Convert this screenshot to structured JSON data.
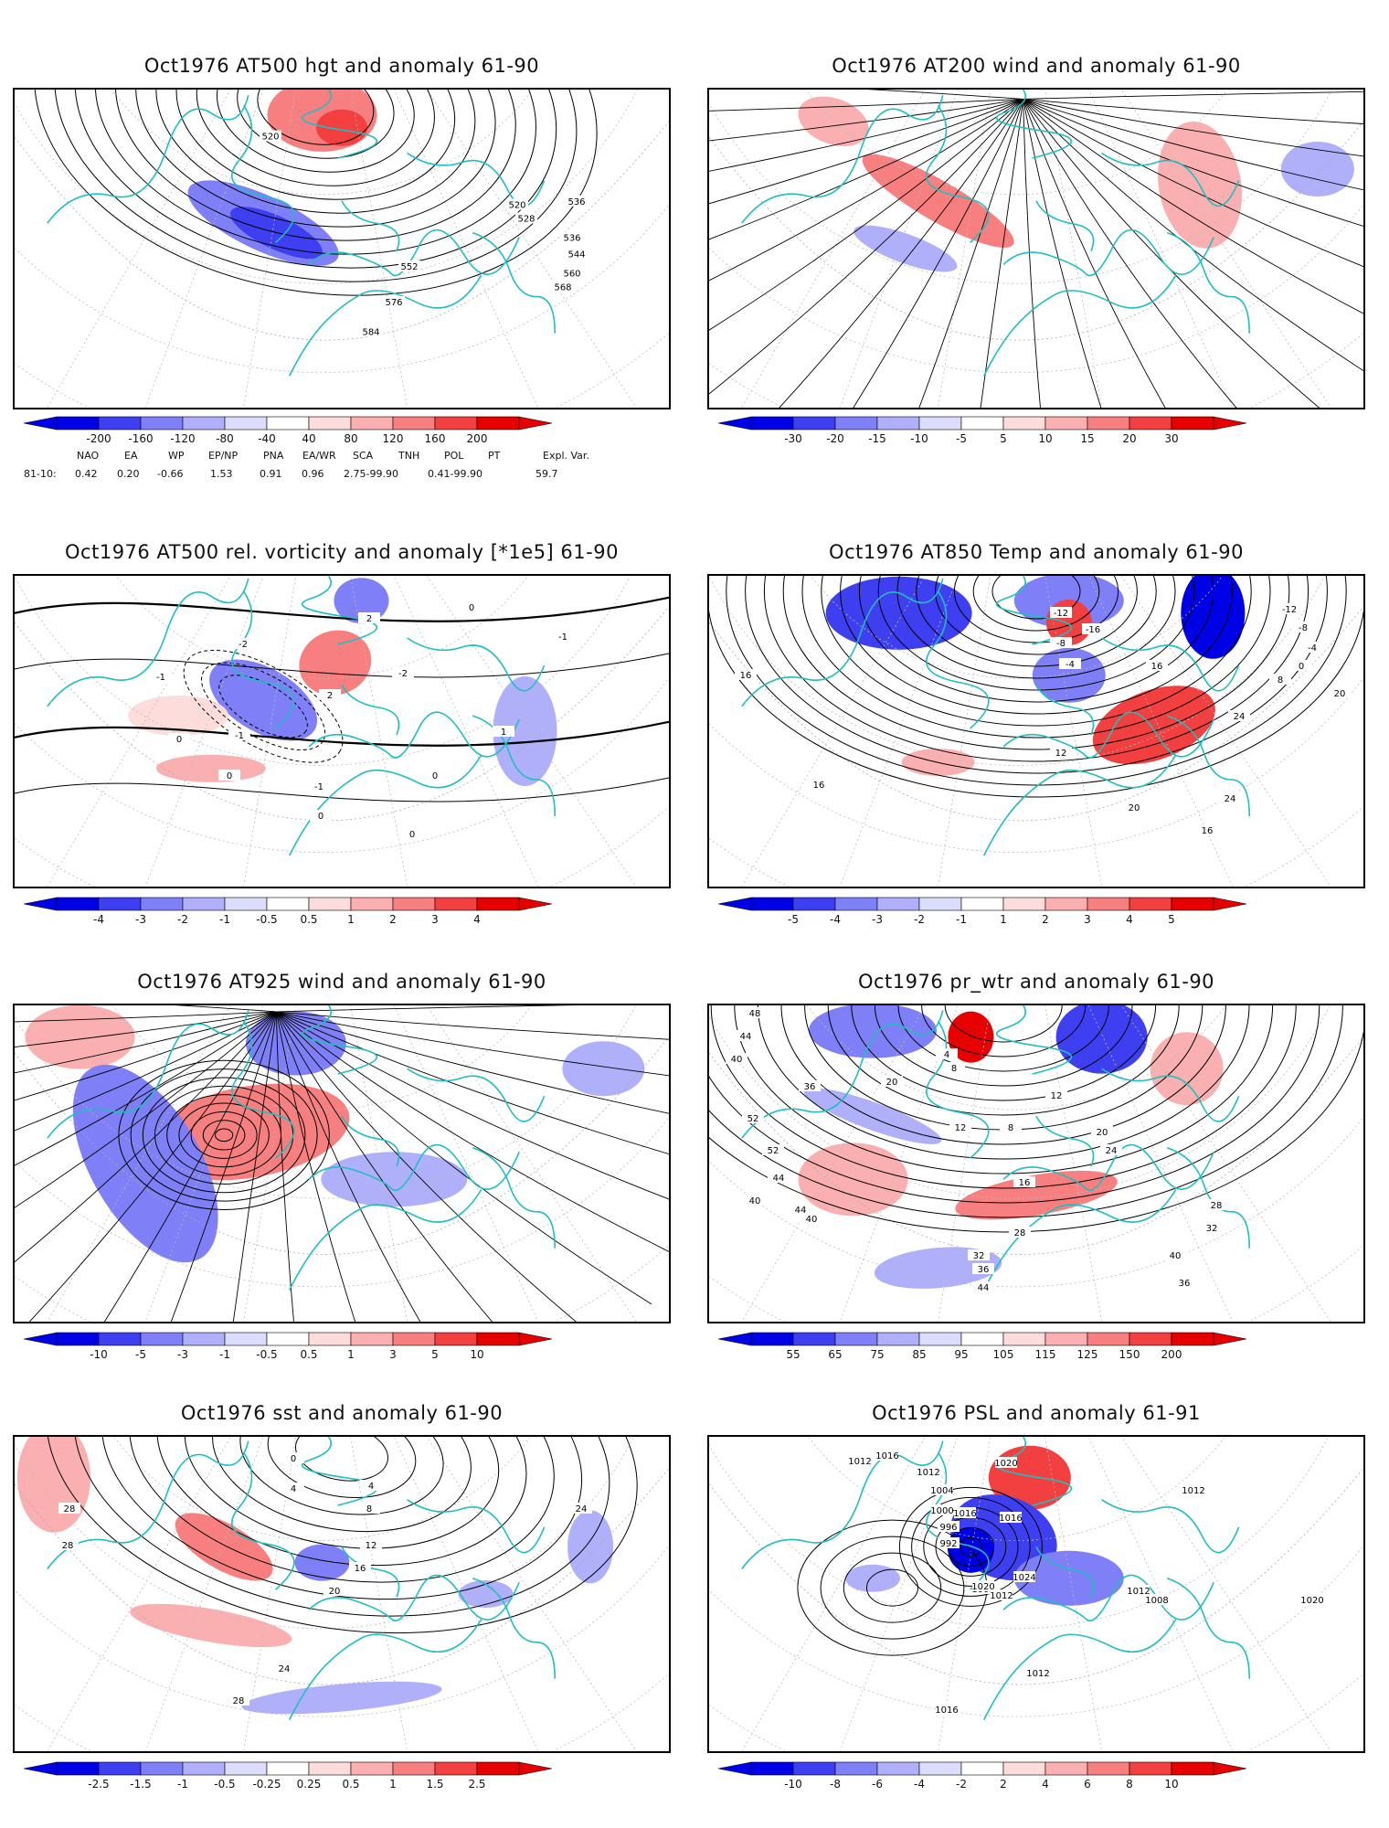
{
  "panels": [
    {
      "id": "p1",
      "title": "Oct1976 AT500 hgt and anomaly 61-90",
      "kind": "hgt",
      "colorbar": [
        "-200",
        "-160",
        "-120",
        "-80",
        "-40",
        "40",
        "80",
        "120",
        "160",
        "200"
      ],
      "contour_labels": [
        "520",
        "520",
        "528",
        "536",
        "536",
        "544",
        "552",
        "560",
        "568",
        "576",
        "584"
      ]
    },
    {
      "id": "p2",
      "title": "Oct1976 AT200 wind and anomaly 61-90",
      "kind": "wind",
      "colorbar": [
        "-30",
        "-20",
        "-15",
        "-10",
        "-5",
        "5",
        "10",
        "15",
        "20",
        "30"
      ],
      "contour_labels": []
    },
    {
      "id": "p3",
      "title": "Oct1976 AT500 rel. vorticity and anomaly [*1e5] 61-90",
      "kind": "vort",
      "colorbar": [
        "-4",
        "-3",
        "-2",
        "-1",
        "-0.5",
        "0.5",
        "1",
        "2",
        "3",
        "4"
      ],
      "contour_labels": [
        "0",
        "0",
        "0",
        "0",
        "0",
        "0",
        "-1",
        "-1",
        "-1",
        "-2",
        "-2",
        "2",
        "2",
        "1",
        "-1"
      ]
    },
    {
      "id": "p4",
      "title": "Oct1976 AT850 Temp and anomaly 61-90",
      "kind": "temp",
      "colorbar": [
        "-5",
        "-4",
        "-3",
        "-2",
        "-1",
        "1",
        "2",
        "3",
        "4",
        "5"
      ],
      "contour_labels": [
        "-12",
        "-16",
        "-8",
        "-4",
        "-12",
        "-8",
        "-4",
        "0",
        "8",
        "16",
        "16",
        "12",
        "16",
        "24",
        "24",
        "20",
        "16",
        "20"
      ]
    },
    {
      "id": "p5",
      "title": "Oct1976 AT925 wind and anomaly 61-90",
      "kind": "wind925",
      "colorbar": [
        "-10",
        "-5",
        "-3",
        "-1",
        "-0.5",
        "0.5",
        "1",
        "3",
        "5",
        "10"
      ],
      "contour_labels": []
    },
    {
      "id": "p6",
      "title": "Oct1976 pr_wtr and anomaly 61-90",
      "kind": "prw",
      "colorbar": [
        "55",
        "65",
        "75",
        "85",
        "95",
        "105",
        "115",
        "125",
        "150",
        "200"
      ],
      "contour_labels": [
        "48",
        "44",
        "40",
        "36",
        "52",
        "52",
        "44",
        "40",
        "44",
        "40",
        "20",
        "12",
        "8",
        "4",
        "8",
        "12",
        "20",
        "24",
        "16",
        "28",
        "32",
        "36",
        "44",
        "36",
        "40",
        "32",
        "28"
      ]
    },
    {
      "id": "p7",
      "title": "Oct1976 sst and anomaly 61-90",
      "kind": "sst",
      "colorbar": [
        "-2.5",
        "-1.5",
        "-1",
        "-0.5",
        "-0.25",
        "0.25",
        "0.5",
        "1",
        "1.5",
        "2.5"
      ],
      "contour_labels": [
        "0",
        "4",
        "4",
        "8",
        "12",
        "16",
        "20",
        "24",
        "28",
        "28",
        "28",
        "24"
      ]
    },
    {
      "id": "p8",
      "title": "Oct1976 PSL and anomaly 61-91",
      "kind": "psl",
      "colorbar": [
        "-10",
        "-8",
        "-6",
        "-4",
        "-2",
        "2",
        "4",
        "6",
        "8",
        "10"
      ],
      "contour_labels": [
        "1012",
        "1016",
        "1012",
        "1004",
        "1000",
        "996",
        "992",
        "1008",
        "1012",
        "1016",
        "1020",
        "1024",
        "1016",
        "1020",
        "1012",
        "1008",
        "1016",
        "1012",
        "1012",
        "1020"
      ]
    }
  ],
  "indices": {
    "headers": [
      "NAO",
      "EA",
      "WP",
      "EP/NP",
      "PNA",
      "EA/WR",
      "SCA",
      "TNH",
      "POL",
      "PT",
      "Expl. Var."
    ],
    "row_label": "81-10:",
    "values": [
      "0.42",
      "0.20",
      "-0.66",
      "1.53",
      "0.91",
      "0.96",
      "2.75-99.90",
      "0.41-99.90",
      "59.7"
    ]
  },
  "colors": {
    "coastline": "#1fbfbf",
    "neg": [
      "#0000e6",
      "#3f3ff2",
      "#7f7ff7",
      "#b0b0fa",
      "#dcdcfd"
    ],
    "pos": [
      "#fddcdc",
      "#fab0b0",
      "#f77f7f",
      "#f23f3f",
      "#e60000"
    ]
  }
}
